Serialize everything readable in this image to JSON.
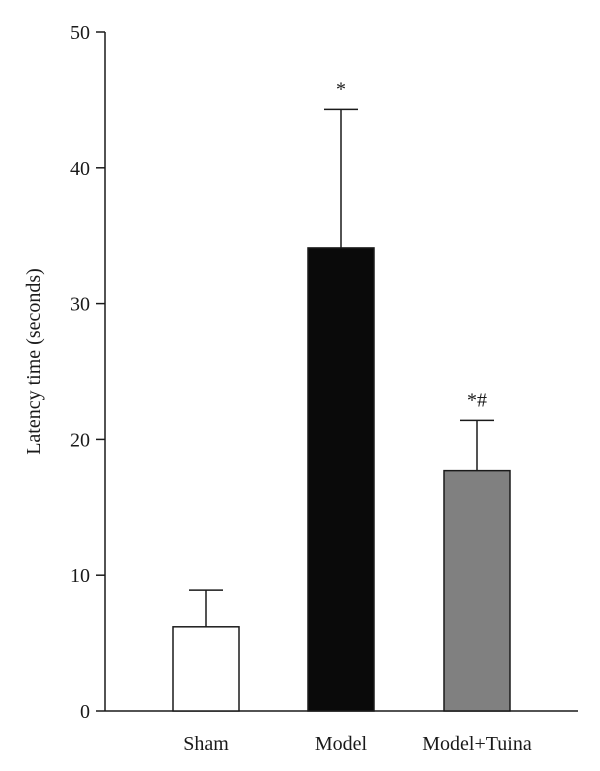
{
  "chart_data": {
    "type": "bar",
    "title": "",
    "xlabel": "",
    "ylabel": "Latency time (seconds)",
    "ylim": [
      0,
      50
    ],
    "yticks": [
      0,
      10,
      20,
      30,
      40,
      50
    ],
    "categories": [
      "Sham",
      "Model",
      "Model+Tuina"
    ],
    "values": [
      6.2,
      34.1,
      17.7
    ],
    "errors": [
      2.7,
      10.2,
      3.7
    ],
    "annotations": [
      "",
      "*",
      "*#"
    ],
    "colors": [
      "#ffffff",
      "#0a0a0a",
      "#808080"
    ],
    "grid": false,
    "legend": "none"
  }
}
